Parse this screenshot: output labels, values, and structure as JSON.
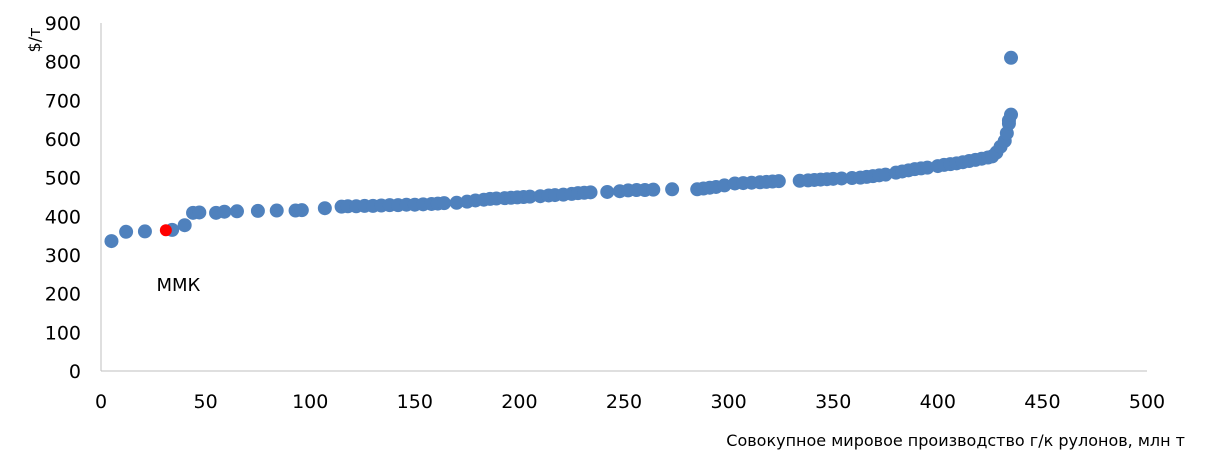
{
  "chart_data": {
    "type": "scatter",
    "xlabel": "Совокупное мировое производство г/к рулонов, млн т",
    "ylabel": "$/т",
    "xlim": [
      0,
      500
    ],
    "ylim": [
      0,
      900
    ],
    "x_ticks": [
      0,
      50,
      100,
      150,
      200,
      250,
      300,
      350,
      400,
      450,
      500
    ],
    "y_ticks": [
      0,
      100,
      200,
      300,
      400,
      500,
      600,
      700,
      800,
      900
    ],
    "grid": false,
    "legend": "none",
    "colors": {
      "series": "#4f81bd",
      "highlight": "#ff0000"
    },
    "annotations": [
      {
        "text": "ММК",
        "x": 37,
        "y": 222
      }
    ],
    "highlight": {
      "name": "ММК",
      "x": 31,
      "y": 364
    },
    "points": [
      [
        5,
        336
      ],
      [
        12,
        360
      ],
      [
        21,
        361
      ],
      [
        34,
        365
      ],
      [
        40,
        377
      ],
      [
        44,
        409
      ],
      [
        47,
        410
      ],
      [
        55,
        409
      ],
      [
        59,
        412
      ],
      [
        65,
        413
      ],
      [
        75,
        414
      ],
      [
        84,
        415
      ],
      [
        93,
        415
      ],
      [
        96,
        416
      ],
      [
        107,
        421
      ],
      [
        115,
        425
      ],
      [
        118,
        426
      ],
      [
        122,
        426
      ],
      [
        126,
        427
      ],
      [
        130,
        427
      ],
      [
        134,
        428
      ],
      [
        138,
        429
      ],
      [
        142,
        429
      ],
      [
        146,
        430
      ],
      [
        150,
        430
      ],
      [
        154,
        431
      ],
      [
        158,
        432
      ],
      [
        161,
        433
      ],
      [
        164,
        434
      ],
      [
        170,
        435
      ],
      [
        175,
        438
      ],
      [
        179,
        441
      ],
      [
        183,
        443
      ],
      [
        186,
        445
      ],
      [
        189,
        446
      ],
      [
        193,
        447
      ],
      [
        196,
        448
      ],
      [
        199,
        449
      ],
      [
        202,
        450
      ],
      [
        205,
        451
      ],
      [
        210,
        452
      ],
      [
        214,
        454
      ],
      [
        217,
        455
      ],
      [
        221,
        456
      ],
      [
        225,
        458
      ],
      [
        228,
        460
      ],
      [
        231,
        461
      ],
      [
        234,
        462
      ],
      [
        242,
        463
      ],
      [
        248,
        465
      ],
      [
        252,
        467
      ],
      [
        256,
        468
      ],
      [
        260,
        468
      ],
      [
        264,
        469
      ],
      [
        273,
        470
      ],
      [
        285,
        470
      ],
      [
        288,
        472
      ],
      [
        291,
        474
      ],
      [
        294,
        476
      ],
      [
        298,
        480
      ],
      [
        303,
        485
      ],
      [
        307,
        486
      ],
      [
        311,
        487
      ],
      [
        315,
        488
      ],
      [
        318,
        489
      ],
      [
        321,
        490
      ],
      [
        324,
        491
      ],
      [
        334,
        492
      ],
      [
        338,
        493
      ],
      [
        341,
        494
      ],
      [
        344,
        495
      ],
      [
        347,
        496
      ],
      [
        350,
        497
      ],
      [
        354,
        498
      ],
      [
        359,
        499
      ],
      [
        363,
        500
      ],
      [
        366,
        502
      ],
      [
        369,
        504
      ],
      [
        372,
        506
      ],
      [
        375,
        508
      ],
      [
        380,
        513
      ],
      [
        383,
        516
      ],
      [
        386,
        519
      ],
      [
        389,
        522
      ],
      [
        392,
        524
      ],
      [
        395,
        526
      ],
      [
        400,
        530
      ],
      [
        403,
        533
      ],
      [
        406,
        535
      ],
      [
        409,
        537
      ],
      [
        412,
        540
      ],
      [
        415,
        543
      ],
      [
        418,
        546
      ],
      [
        421,
        549
      ],
      [
        424,
        552
      ],
      [
        426,
        555
      ],
      [
        428,
        565
      ],
      [
        430,
        580
      ],
      [
        432,
        595
      ],
      [
        433,
        615
      ],
      [
        434,
        640
      ],
      [
        434,
        648
      ],
      [
        435,
        663
      ],
      [
        435,
        810
      ]
    ]
  }
}
